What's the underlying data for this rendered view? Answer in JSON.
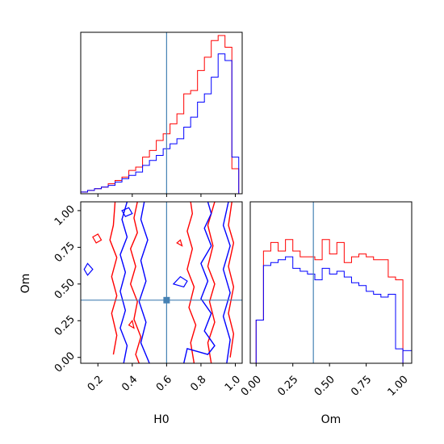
{
  "colors": {
    "red": "#ff0000",
    "blue": "#0000ff",
    "truth": "#4682b4"
  },
  "chart_data": {
    "type": "corner",
    "parameters": [
      "H0",
      "Om"
    ],
    "truth": {
      "H0": 0.6,
      "Om": 0.39
    },
    "series": [
      {
        "color": "red"
      },
      {
        "color": "blue"
      }
    ],
    "panels": [
      {
        "id": "hist-H0",
        "type": "step-histogram",
        "xlim": [
          0.1,
          1.04
        ],
        "xticks": [
          "0.2",
          "0.4",
          "0.6",
          "0.8",
          "1.0"
        ],
        "show_tick_labels": false,
        "bin_edges": [
          0.1,
          0.14,
          0.18,
          0.22,
          0.26,
          0.3,
          0.34,
          0.38,
          0.42,
          0.46,
          0.5,
          0.54,
          0.58,
          0.62,
          0.66,
          0.7,
          0.74,
          0.78,
          0.82,
          0.86,
          0.9,
          0.94,
          0.98,
          1.02
        ],
        "counts": [
          [
            1,
            2,
            3,
            4,
            6,
            8,
            10,
            14,
            16,
            22,
            26,
            32,
            36,
            42,
            48,
            60,
            62,
            74,
            82,
            92,
            95,
            88,
            15
          ],
          [
            1,
            2,
            3,
            4,
            5,
            7,
            9,
            11,
            13,
            17,
            20,
            23,
            27,
            30,
            33,
            40,
            46,
            55,
            60,
            70,
            84,
            80,
            22
          ]
        ]
      },
      {
        "id": "contour-H0-Om",
        "type": "contour",
        "xlim": [
          0.1,
          1.04
        ],
        "ylim": [
          -0.04,
          1.06
        ],
        "xlabel": "H0",
        "ylabel": "Om",
        "xticks": [
          "0.2",
          "0.4",
          "0.6",
          "0.8",
          "1.0"
        ],
        "yticks": [
          "0.00",
          "0.25",
          "0.50",
          "0.75",
          "1.00"
        ]
      },
      {
        "id": "hist-Om",
        "type": "step-histogram",
        "xlim": [
          -0.04,
          1.06
        ],
        "xlabel": "Om",
        "xticks": [
          "0.00",
          "0.25",
          "0.50",
          "0.75",
          "1.00"
        ],
        "bin_edges": [
          0.0,
          0.05,
          0.1,
          0.15,
          0.2,
          0.25,
          0.3,
          0.35,
          0.4,
          0.45,
          0.5,
          0.55,
          0.6,
          0.65,
          0.7,
          0.75,
          0.8,
          0.85,
          0.9,
          0.95,
          1.0
        ],
        "counts": [
          [
            30,
            78,
            84,
            78,
            86,
            78,
            74,
            74,
            72,
            86,
            76,
            84,
            70,
            74,
            76,
            74,
            72,
            72,
            60,
            58
          ],
          [
            30,
            68,
            70,
            72,
            74,
            66,
            64,
            62,
            58,
            66,
            62,
            64,
            60,
            56,
            54,
            50,
            48,
            46,
            48,
            10
          ]
        ]
      }
    ]
  }
}
